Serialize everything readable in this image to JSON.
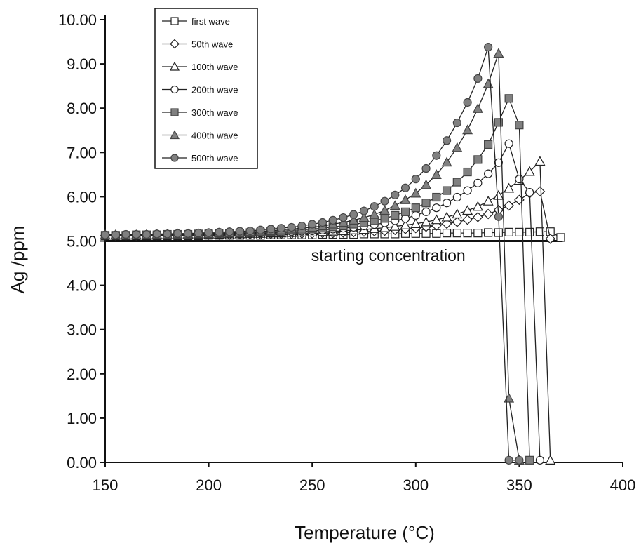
{
  "chart_data": {
    "type": "line",
    "xlabel": "Temperature (°C)",
    "ylabel": "Ag /ppm",
    "xlim": [
      150,
      400
    ],
    "ylim": [
      0,
      10
    ],
    "x_ticks": [
      150,
      200,
      250,
      300,
      350,
      400
    ],
    "y_ticks": [
      0,
      1,
      2,
      3,
      4,
      5,
      6,
      7,
      8,
      9,
      10
    ],
    "x_tick_labels": [
      "150",
      "200",
      "250",
      "300",
      "350",
      "400"
    ],
    "y_tick_labels": [
      "0.00",
      "1.00",
      "2.00",
      "3.00",
      "4.00",
      "5.00",
      "6.00",
      "7.00",
      "8.00",
      "9.00",
      "10.00"
    ],
    "grid": false,
    "legend_position": "top-left",
    "annotations": [
      {
        "text": "starting concentration",
        "x": 280,
        "y": 4.55
      }
    ],
    "reference_lines": [
      {
        "orientation": "horizontal",
        "y": 5.0,
        "label": "starting concentration"
      }
    ],
    "series": [
      {
        "name": "first wave",
        "marker": "square",
        "filled": false,
        "x": [
          150,
          155,
          160,
          165,
          170,
          175,
          180,
          185,
          190,
          195,
          200,
          205,
          210,
          215,
          220,
          225,
          230,
          235,
          240,
          245,
          250,
          255,
          260,
          265,
          270,
          275,
          280,
          285,
          290,
          295,
          300,
          305,
          310,
          315,
          320,
          325,
          330,
          335,
          340,
          345,
          350,
          355,
          360,
          365,
          370
        ],
        "y": [
          5.12,
          5.12,
          5.12,
          5.12,
          5.12,
          5.12,
          5.12,
          5.12,
          5.12,
          5.12,
          5.13,
          5.13,
          5.13,
          5.13,
          5.13,
          5.13,
          5.14,
          5.14,
          5.14,
          5.14,
          5.14,
          5.15,
          5.15,
          5.15,
          5.15,
          5.16,
          5.16,
          5.16,
          5.16,
          5.17,
          5.17,
          5.17,
          5.17,
          5.18,
          5.18,
          5.18,
          5.18,
          5.19,
          5.19,
          5.2,
          5.2,
          5.2,
          5.21,
          5.21,
          5.08
        ]
      },
      {
        "name": "50th wave",
        "marker": "diamond",
        "filled": false,
        "x": [
          150,
          155,
          160,
          165,
          170,
          175,
          180,
          185,
          190,
          195,
          200,
          205,
          210,
          215,
          220,
          225,
          230,
          235,
          240,
          245,
          250,
          255,
          260,
          265,
          270,
          275,
          280,
          285,
          290,
          295,
          300,
          305,
          310,
          315,
          320,
          325,
          330,
          335,
          340,
          345,
          350,
          355,
          360,
          365
        ],
        "y": [
          5.12,
          5.12,
          5.12,
          5.12,
          5.13,
          5.13,
          5.13,
          5.13,
          5.13,
          5.14,
          5.14,
          5.14,
          5.14,
          5.15,
          5.15,
          5.15,
          5.16,
          5.16,
          5.16,
          5.17,
          5.17,
          5.18,
          5.18,
          5.19,
          5.2,
          5.21,
          5.22,
          5.23,
          5.25,
          5.27,
          5.29,
          5.32,
          5.35,
          5.39,
          5.43,
          5.48,
          5.54,
          5.61,
          5.7,
          5.8,
          5.93,
          6.08,
          6.12,
          5.05
        ]
      },
      {
        "name": "100th wave",
        "marker": "triangle",
        "filled": false,
        "x": [
          150,
          155,
          160,
          165,
          170,
          175,
          180,
          185,
          190,
          195,
          200,
          205,
          210,
          215,
          220,
          225,
          230,
          235,
          240,
          245,
          250,
          255,
          260,
          265,
          270,
          275,
          280,
          285,
          290,
          295,
          300,
          305,
          310,
          315,
          320,
          325,
          330,
          335,
          340,
          345,
          350,
          355,
          360,
          365
        ],
        "y": [
          5.13,
          5.13,
          5.13,
          5.13,
          5.13,
          5.13,
          5.14,
          5.14,
          5.14,
          5.15,
          5.15,
          5.15,
          5.16,
          5.16,
          5.17,
          5.17,
          5.18,
          5.18,
          5.19,
          5.2,
          5.2,
          5.21,
          5.22,
          5.23,
          5.25,
          5.26,
          5.28,
          5.3,
          5.33,
          5.36,
          5.39,
          5.43,
          5.48,
          5.54,
          5.61,
          5.69,
          5.78,
          5.9,
          6.03,
          6.19,
          6.37,
          6.57,
          6.8,
          0.05
        ]
      },
      {
        "name": "200th wave",
        "marker": "circle",
        "filled": false,
        "x": [
          150,
          155,
          160,
          165,
          170,
          175,
          180,
          185,
          190,
          195,
          200,
          205,
          210,
          215,
          220,
          225,
          230,
          235,
          240,
          245,
          250,
          255,
          260,
          265,
          270,
          275,
          280,
          285,
          290,
          295,
          300,
          305,
          310,
          315,
          320,
          325,
          330,
          335,
          340,
          345,
          350,
          355,
          360
        ],
        "y": [
          5.13,
          5.13,
          5.13,
          5.13,
          5.13,
          5.14,
          5.14,
          5.14,
          5.15,
          5.15,
          5.15,
          5.16,
          5.16,
          5.17,
          5.18,
          5.18,
          5.19,
          5.2,
          5.21,
          5.22,
          5.23,
          5.25,
          5.27,
          5.29,
          5.31,
          5.34,
          5.37,
          5.41,
          5.46,
          5.51,
          5.58,
          5.66,
          5.75,
          5.86,
          5.99,
          6.14,
          6.31,
          6.52,
          6.77,
          7.2,
          6.4,
          6.1,
          0.05
        ]
      },
      {
        "name": "300th wave",
        "marker": "square",
        "filled": true,
        "x": [
          150,
          155,
          160,
          165,
          170,
          175,
          180,
          185,
          190,
          195,
          200,
          205,
          210,
          215,
          220,
          225,
          230,
          235,
          240,
          245,
          250,
          255,
          260,
          265,
          270,
          275,
          280,
          285,
          290,
          295,
          300,
          305,
          310,
          315,
          320,
          325,
          330,
          335,
          340,
          345,
          350,
          355
        ],
        "y": [
          5.13,
          5.13,
          5.13,
          5.14,
          5.14,
          5.14,
          5.15,
          5.15,
          5.15,
          5.16,
          5.16,
          5.17,
          5.18,
          5.18,
          5.19,
          5.2,
          5.21,
          5.22,
          5.24,
          5.25,
          5.27,
          5.29,
          5.32,
          5.34,
          5.38,
          5.41,
          5.46,
          5.51,
          5.58,
          5.66,
          5.75,
          5.86,
          5.99,
          6.14,
          6.33,
          6.56,
          6.84,
          7.18,
          7.68,
          8.22,
          7.62,
          0.05
        ]
      },
      {
        "name": "400th wave",
        "marker": "triangle",
        "filled": true,
        "x": [
          150,
          155,
          160,
          165,
          170,
          175,
          180,
          185,
          190,
          195,
          200,
          205,
          210,
          215,
          220,
          225,
          230,
          235,
          240,
          245,
          250,
          255,
          260,
          265,
          270,
          275,
          280,
          285,
          290,
          295,
          300,
          305,
          310,
          315,
          320,
          325,
          330,
          335,
          340,
          345,
          350
        ],
        "y": [
          5.14,
          5.14,
          5.14,
          5.14,
          5.15,
          5.15,
          5.15,
          5.16,
          5.16,
          5.17,
          5.17,
          5.18,
          5.19,
          5.2,
          5.21,
          5.22,
          5.23,
          5.25,
          5.27,
          5.29,
          5.31,
          5.34,
          5.38,
          5.42,
          5.47,
          5.53,
          5.6,
          5.69,
          5.8,
          5.93,
          6.08,
          6.27,
          6.5,
          6.78,
          7.11,
          7.51,
          7.99,
          8.55,
          9.24,
          1.45,
          0.05
        ]
      },
      {
        "name": "500th wave",
        "marker": "circle",
        "filled": true,
        "x": [
          150,
          155,
          160,
          165,
          170,
          175,
          180,
          185,
          190,
          195,
          200,
          205,
          210,
          215,
          220,
          225,
          230,
          235,
          240,
          245,
          250,
          255,
          260,
          265,
          270,
          275,
          280,
          285,
          290,
          295,
          300,
          305,
          310,
          315,
          320,
          325,
          330,
          335,
          340,
          345,
          350
        ],
        "y": [
          5.14,
          5.14,
          5.15,
          5.15,
          5.15,
          5.16,
          5.16,
          5.17,
          5.17,
          5.18,
          5.19,
          5.2,
          5.21,
          5.22,
          5.23,
          5.25,
          5.27,
          5.29,
          5.31,
          5.34,
          5.38,
          5.42,
          5.47,
          5.53,
          5.6,
          5.68,
          5.78,
          5.9,
          6.04,
          6.2,
          6.4,
          6.64,
          6.93,
          7.27,
          7.67,
          8.13,
          8.67,
          9.38,
          5.55,
          0.05,
          0.05
        ]
      }
    ]
  }
}
